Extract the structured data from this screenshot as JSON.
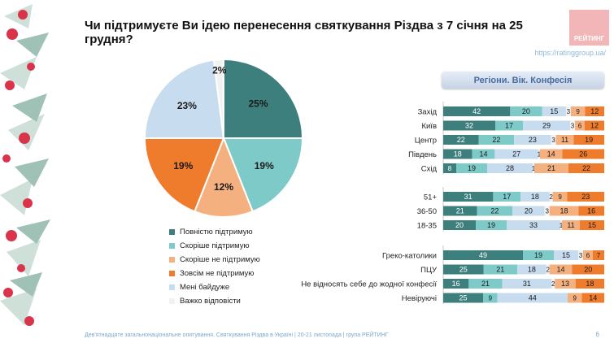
{
  "header": {
    "title": "Чи підтримуєте Ви ідею перенесення святкування Різдва з 7 січня на 25 грудня?",
    "logo_text": "РЕЙТИНГ",
    "site": "https://ratinggroup.ua/",
    "filter_label": "Регіони. Вік. Конфесія"
  },
  "footer": {
    "text": "Дев'ятнадцяте загальнонаціональне опитування. Святкування Різдва в Україні | 20-21 листопада | група РЕЙТИНГ",
    "page": "6"
  },
  "colors": [
    "#3d7f7c",
    "#7ecac9",
    "#f4b07f",
    "#ef7b2d",
    "#c7dcef",
    "#f2f2f2"
  ],
  "chart_data": [
    {
      "type": "pie",
      "labels": [
        "Повністю підтримую",
        "Скоріше підтримую",
        "Скоріше не підтримую",
        "Зовсім не підтримую",
        "Мені байдуже",
        "Важко відповісти"
      ],
      "values": [
        25,
        19,
        12,
        19,
        23,
        2
      ]
    },
    {
      "type": "bar",
      "orientation": "horizontal",
      "stacked": true,
      "series_names": [
        "Повністю підтримую",
        "Скоріше підтримую",
        "Мені байдуже",
        "Важко відповісти",
        "Скоріше не підтримую",
        "Зовсім не підтримую"
      ],
      "series_colors": [
        "#3d7f7c",
        "#7ecac9",
        "#c7dcef",
        "#f2f2f2",
        "#f4b07f",
        "#ef7b2d"
      ],
      "groups": [
        {
          "rows": [
            {
              "label": "Захід",
              "values": [
                42,
                20,
                15,
                3,
                9,
                12
              ]
            },
            {
              "label": "Київ",
              "values": [
                32,
                17,
                29,
                3,
                6,
                12
              ]
            },
            {
              "label": "Центр",
              "values": [
                22,
                22,
                23,
                3,
                11,
                19
              ]
            },
            {
              "label": "Південь",
              "values": [
                18,
                14,
                27,
                1,
                14,
                26
              ]
            },
            {
              "label": "Схід",
              "values": [
                8,
                19,
                28,
                1,
                21,
                22
              ]
            }
          ]
        },
        {
          "rows": [
            {
              "label": "51+",
              "values": [
                31,
                17,
                18,
                2,
                9,
                23
              ]
            },
            {
              "label": "36-50",
              "values": [
                21,
                22,
                20,
                3,
                18,
                16
              ]
            },
            {
              "label": "18-35",
              "values": [
                20,
                19,
                33,
                1,
                11,
                15
              ]
            }
          ]
        },
        {
          "rows": [
            {
              "label": "Греко-католики",
              "values": [
                49,
                19,
                15,
                3,
                6,
                7
              ]
            },
            {
              "label": "ПЦУ",
              "values": [
                25,
                21,
                18,
                2,
                14,
                20
              ]
            },
            {
              "label": "Не відносять себе до жодної конфесії",
              "values": [
                16,
                21,
                31,
                2,
                13,
                18
              ]
            },
            {
              "label": "Невіруючі",
              "values": [
                25,
                9,
                44,
                0,
                9,
                14
              ]
            }
          ]
        }
      ]
    }
  ]
}
